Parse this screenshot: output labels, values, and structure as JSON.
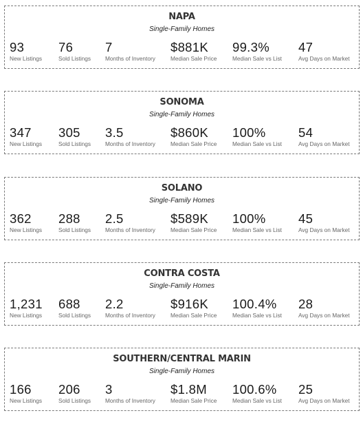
{
  "regions": [
    {
      "name": "NAPA",
      "subtitle": "Single-Family Homes",
      "stats": [
        {
          "value": "93",
          "label": "New Listings"
        },
        {
          "value": "76",
          "label": "Sold Listings"
        },
        {
          "value": "7",
          "label": "Months of Inventory"
        },
        {
          "value": "$881K",
          "label": "Median Sale Price"
        },
        {
          "value": "99.3%",
          "label": "Median Sale vs List"
        },
        {
          "value": "47",
          "label": "Avg Days on Market"
        }
      ]
    },
    {
      "name": "SONOMA",
      "subtitle": "Single-Family Homes",
      "stats": [
        {
          "value": "347",
          "label": "New Listings"
        },
        {
          "value": "305",
          "label": "Sold Listings"
        },
        {
          "value": "3.5",
          "label": "Months of Inventory"
        },
        {
          "value": "$860K",
          "label": "Median Sale Price"
        },
        {
          "value": "100%",
          "label": "Median Sale vs List"
        },
        {
          "value": "54",
          "label": "Avg Days on Market"
        }
      ]
    },
    {
      "name": "SOLANO",
      "subtitle": "Single-Family Homes",
      "stats": [
        {
          "value": "362",
          "label": "New Listings"
        },
        {
          "value": "288",
          "label": "Sold Listings"
        },
        {
          "value": "2.5",
          "label": "Months of Inventory"
        },
        {
          "value": "$589K",
          "label": "Median Sale Price"
        },
        {
          "value": "100%",
          "label": "Median Sale vs List"
        },
        {
          "value": "45",
          "label": "Avg Days on Market"
        }
      ]
    },
    {
      "name": "CONTRA COSTA",
      "subtitle": "Single-Family Homes",
      "stats": [
        {
          "value": "1,231",
          "label": "New Listings"
        },
        {
          "value": "688",
          "label": "Sold Listings"
        },
        {
          "value": "2.2",
          "label": "Months of Inventory"
        },
        {
          "value": "$916K",
          "label": "Median Sale Price"
        },
        {
          "value": "100.4%",
          "label": "Median Sale vs List"
        },
        {
          "value": "28",
          "label": "Avg Days on Market"
        }
      ]
    },
    {
      "name": "SOUTHERN/CENTRAL MARIN",
      "subtitle": "Single-Family Homes",
      "stats": [
        {
          "value": "166",
          "label": "New Listings"
        },
        {
          "value": "206",
          "label": "Sold Listings"
        },
        {
          "value": "3",
          "label": "Months of Inventory"
        },
        {
          "value": "$1.8M",
          "label": "Median Sale Price"
        },
        {
          "value": "100.6%",
          "label": "Median Sale vs List"
        },
        {
          "value": "25",
          "label": "Avg Days on Market"
        }
      ]
    }
  ]
}
